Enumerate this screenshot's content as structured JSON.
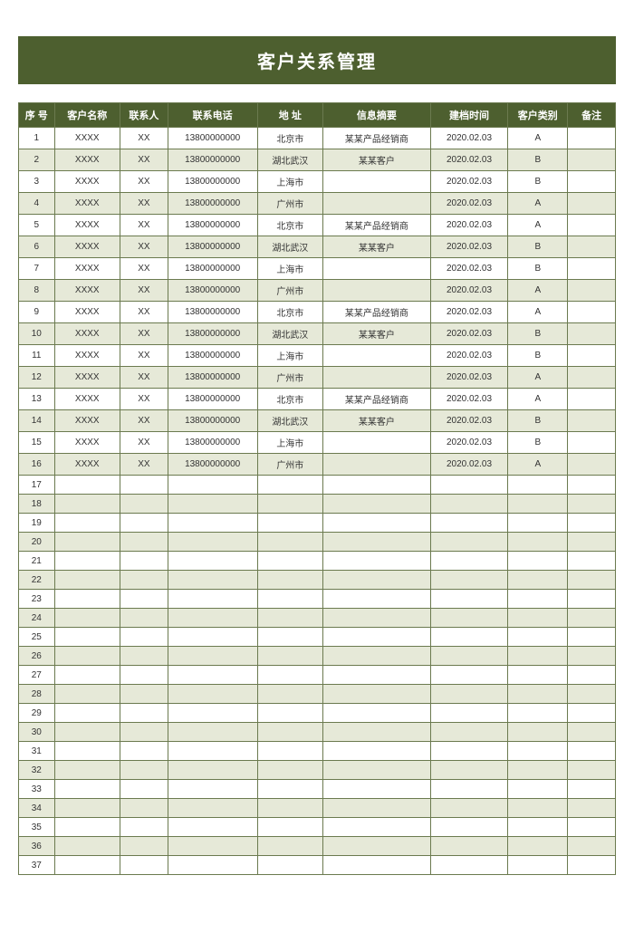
{
  "title": "客户关系管理",
  "colors": {
    "header_bg": "#4d5f2f",
    "header_text": "#ffffff",
    "border": "#6b7a4f",
    "row_even": "#e6e9d8",
    "row_odd": "#ffffff",
    "cell_text": "#333333",
    "page_bg": "#ffffff"
  },
  "typography": {
    "title_fontsize": 20,
    "header_fontsize": 11,
    "cell_fontsize": 10,
    "font_family": "Microsoft YaHei"
  },
  "table": {
    "columns": [
      {
        "key": "seq",
        "label": "序  号",
        "width_pct": 6
      },
      {
        "key": "name",
        "label": "客户名称",
        "width_pct": 11
      },
      {
        "key": "contact",
        "label": "联系人",
        "width_pct": 8
      },
      {
        "key": "phone",
        "label": "联系电话",
        "width_pct": 15
      },
      {
        "key": "addr",
        "label": "地    址",
        "width_pct": 11
      },
      {
        "key": "summary",
        "label": "信息摘要",
        "width_pct": 18
      },
      {
        "key": "date",
        "label": "建档时间",
        "width_pct": 13
      },
      {
        "key": "cat",
        "label": "客户类别",
        "width_pct": 10
      },
      {
        "key": "remark",
        "label": "备注",
        "width_pct": 8
      }
    ],
    "total_rows": 37,
    "rows": [
      {
        "seq": "1",
        "name": "XXXX",
        "contact": "XX",
        "phone": "13800000000",
        "addr": "北京市",
        "summary": "某某产品经销商",
        "date": "2020.02.03",
        "cat": "A",
        "remark": ""
      },
      {
        "seq": "2",
        "name": "XXXX",
        "contact": "XX",
        "phone": "13800000000",
        "addr": "湖北武汉",
        "summary": "某某客户",
        "date": "2020.02.03",
        "cat": "B",
        "remark": ""
      },
      {
        "seq": "3",
        "name": "XXXX",
        "contact": "XX",
        "phone": "13800000000",
        "addr": "上海市",
        "summary": "",
        "date": "2020.02.03",
        "cat": "B",
        "remark": ""
      },
      {
        "seq": "4",
        "name": "XXXX",
        "contact": "XX",
        "phone": "13800000000",
        "addr": "广州市",
        "summary": "",
        "date": "2020.02.03",
        "cat": "A",
        "remark": ""
      },
      {
        "seq": "5",
        "name": "XXXX",
        "contact": "XX",
        "phone": "13800000000",
        "addr": "北京市",
        "summary": "某某产品经销商",
        "date": "2020.02.03",
        "cat": "A",
        "remark": ""
      },
      {
        "seq": "6",
        "name": "XXXX",
        "contact": "XX",
        "phone": "13800000000",
        "addr": "湖北武汉",
        "summary": "某某客户",
        "date": "2020.02.03",
        "cat": "B",
        "remark": ""
      },
      {
        "seq": "7",
        "name": "XXXX",
        "contact": "XX",
        "phone": "13800000000",
        "addr": "上海市",
        "summary": "",
        "date": "2020.02.03",
        "cat": "B",
        "remark": ""
      },
      {
        "seq": "8",
        "name": "XXXX",
        "contact": "XX",
        "phone": "13800000000",
        "addr": "广州市",
        "summary": "",
        "date": "2020.02.03",
        "cat": "A",
        "remark": ""
      },
      {
        "seq": "9",
        "name": "XXXX",
        "contact": "XX",
        "phone": "13800000000",
        "addr": "北京市",
        "summary": "某某产品经销商",
        "date": "2020.02.03",
        "cat": "A",
        "remark": ""
      },
      {
        "seq": "10",
        "name": "XXXX",
        "contact": "XX",
        "phone": "13800000000",
        "addr": "湖北武汉",
        "summary": "某某客户",
        "date": "2020.02.03",
        "cat": "B",
        "remark": ""
      },
      {
        "seq": "11",
        "name": "XXXX",
        "contact": "XX",
        "phone": "13800000000",
        "addr": "上海市",
        "summary": "",
        "date": "2020.02.03",
        "cat": "B",
        "remark": ""
      },
      {
        "seq": "12",
        "name": "XXXX",
        "contact": "XX",
        "phone": "13800000000",
        "addr": "广州市",
        "summary": "",
        "date": "2020.02.03",
        "cat": "A",
        "remark": ""
      },
      {
        "seq": "13",
        "name": "XXXX",
        "contact": "XX",
        "phone": "13800000000",
        "addr": "北京市",
        "summary": "某某产品经销商",
        "date": "2020.02.03",
        "cat": "A",
        "remark": ""
      },
      {
        "seq": "14",
        "name": "XXXX",
        "contact": "XX",
        "phone": "13800000000",
        "addr": "湖北武汉",
        "summary": "某某客户",
        "date": "2020.02.03",
        "cat": "B",
        "remark": ""
      },
      {
        "seq": "15",
        "name": "XXXX",
        "contact": "XX",
        "phone": "13800000000",
        "addr": "上海市",
        "summary": "",
        "date": "2020.02.03",
        "cat": "B",
        "remark": ""
      },
      {
        "seq": "16",
        "name": "XXXX",
        "contact": "XX",
        "phone": "13800000000",
        "addr": "广州市",
        "summary": "",
        "date": "2020.02.03",
        "cat": "A",
        "remark": ""
      },
      {
        "seq": "17",
        "name": "",
        "contact": "",
        "phone": "",
        "addr": "",
        "summary": "",
        "date": "",
        "cat": "",
        "remark": ""
      },
      {
        "seq": "18",
        "name": "",
        "contact": "",
        "phone": "",
        "addr": "",
        "summary": "",
        "date": "",
        "cat": "",
        "remark": ""
      },
      {
        "seq": "19",
        "name": "",
        "contact": "",
        "phone": "",
        "addr": "",
        "summary": "",
        "date": "",
        "cat": "",
        "remark": ""
      },
      {
        "seq": "20",
        "name": "",
        "contact": "",
        "phone": "",
        "addr": "",
        "summary": "",
        "date": "",
        "cat": "",
        "remark": ""
      },
      {
        "seq": "21",
        "name": "",
        "contact": "",
        "phone": "",
        "addr": "",
        "summary": "",
        "date": "",
        "cat": "",
        "remark": ""
      },
      {
        "seq": "22",
        "name": "",
        "contact": "",
        "phone": "",
        "addr": "",
        "summary": "",
        "date": "",
        "cat": "",
        "remark": ""
      },
      {
        "seq": "23",
        "name": "",
        "contact": "",
        "phone": "",
        "addr": "",
        "summary": "",
        "date": "",
        "cat": "",
        "remark": ""
      },
      {
        "seq": "24",
        "name": "",
        "contact": "",
        "phone": "",
        "addr": "",
        "summary": "",
        "date": "",
        "cat": "",
        "remark": ""
      },
      {
        "seq": "25",
        "name": "",
        "contact": "",
        "phone": "",
        "addr": "",
        "summary": "",
        "date": "",
        "cat": "",
        "remark": ""
      },
      {
        "seq": "26",
        "name": "",
        "contact": "",
        "phone": "",
        "addr": "",
        "summary": "",
        "date": "",
        "cat": "",
        "remark": ""
      },
      {
        "seq": "27",
        "name": "",
        "contact": "",
        "phone": "",
        "addr": "",
        "summary": "",
        "date": "",
        "cat": "",
        "remark": ""
      },
      {
        "seq": "28",
        "name": "",
        "contact": "",
        "phone": "",
        "addr": "",
        "summary": "",
        "date": "",
        "cat": "",
        "remark": ""
      },
      {
        "seq": "29",
        "name": "",
        "contact": "",
        "phone": "",
        "addr": "",
        "summary": "",
        "date": "",
        "cat": "",
        "remark": ""
      },
      {
        "seq": "30",
        "name": "",
        "contact": "",
        "phone": "",
        "addr": "",
        "summary": "",
        "date": "",
        "cat": "",
        "remark": ""
      },
      {
        "seq": "31",
        "name": "",
        "contact": "",
        "phone": "",
        "addr": "",
        "summary": "",
        "date": "",
        "cat": "",
        "remark": ""
      },
      {
        "seq": "32",
        "name": "",
        "contact": "",
        "phone": "",
        "addr": "",
        "summary": "",
        "date": "",
        "cat": "",
        "remark": ""
      },
      {
        "seq": "33",
        "name": "",
        "contact": "",
        "phone": "",
        "addr": "",
        "summary": "",
        "date": "",
        "cat": "",
        "remark": ""
      },
      {
        "seq": "34",
        "name": "",
        "contact": "",
        "phone": "",
        "addr": "",
        "summary": "",
        "date": "",
        "cat": "",
        "remark": ""
      },
      {
        "seq": "35",
        "name": "",
        "contact": "",
        "phone": "",
        "addr": "",
        "summary": "",
        "date": "",
        "cat": "",
        "remark": ""
      },
      {
        "seq": "36",
        "name": "",
        "contact": "",
        "phone": "",
        "addr": "",
        "summary": "",
        "date": "",
        "cat": "",
        "remark": ""
      },
      {
        "seq": "37",
        "name": "",
        "contact": "",
        "phone": "",
        "addr": "",
        "summary": "",
        "date": "",
        "cat": "",
        "remark": ""
      }
    ]
  }
}
